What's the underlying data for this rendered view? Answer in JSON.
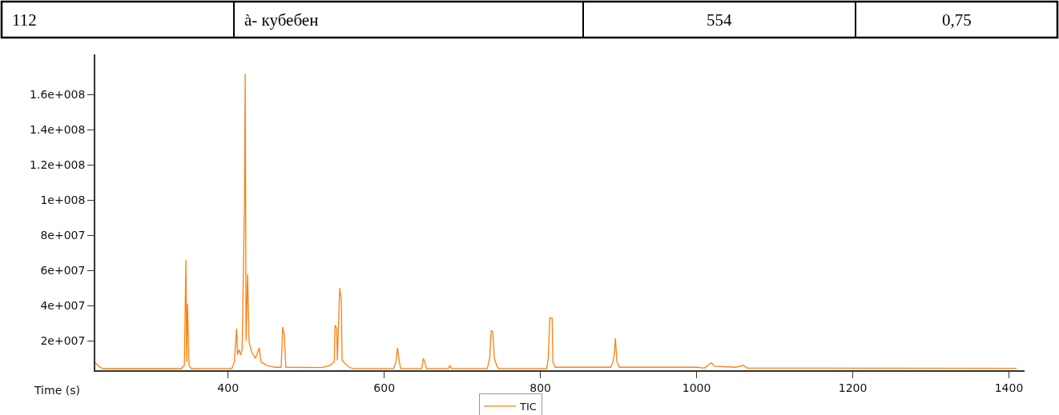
{
  "chart_data": {
    "type": "line",
    "xlabel": "Time (s)",
    "annotations": [
      "112",
      "à- кубебен",
      "554",
      "0,75"
    ],
    "x": [
      230,
      236,
      240,
      340,
      344,
      346,
      347,
      348,
      350,
      353,
      405,
      408,
      411,
      412,
      414,
      416,
      418,
      421,
      422,
      423,
      425,
      427,
      430,
      435,
      440,
      442,
      450,
      460,
      468,
      470,
      472,
      474,
      520,
      530,
      536,
      537,
      539,
      540,
      543,
      545,
      546,
      550,
      555,
      560,
      612,
      615,
      617,
      619,
      621,
      648,
      650,
      652,
      654,
      682,
      684,
      686,
      732,
      735,
      737,
      739,
      741,
      744,
      746,
      808,
      810,
      812,
      815,
      816,
      819,
      890,
      893,
      895,
      896,
      898,
      901,
      1000,
      1010,
      1019,
      1023,
      1050,
      1060,
      1065,
      1410
    ],
    "series": [
      {
        "name": "TIC",
        "color": "#ff7f0e",
        "values": [
          7500000.0,
          5000000.0,
          4200000.0,
          4200000.0,
          6000000.0,
          66000000.0,
          8000000.0,
          41000000.0,
          6000000.0,
          4200000.0,
          4300000.0,
          8000000.0,
          27000000.0,
          12000000.0,
          15000000.0,
          12000000.0,
          15000000.0,
          97000000.0,
          172000000.0,
          20000000.0,
          58000000.0,
          19000000.0,
          14000000.0,
          10000000.0,
          16000000.0,
          8000000.0,
          6000000.0,
          5000000.0,
          5000000.0,
          28000000.0,
          23000000.0,
          5000000.0,
          4800000.0,
          6000000.0,
          8000000.0,
          29000000.0,
          27000000.0,
          9000000.0,
          50000000.0,
          43000000.0,
          9000000.0,
          7000000.0,
          5000000.0,
          4300000.0,
          4300000.0,
          8000000.0,
          16000000.0,
          9000000.0,
          4300000.0,
          4300000.0,
          10000000.0,
          8000000.0,
          4300000.0,
          4300000.0,
          6000000.0,
          4300000.0,
          4300000.0,
          10000000.0,
          26000000.0,
          25000000.0,
          10000000.0,
          6000000.0,
          4300000.0,
          4300000.0,
          10000000.0,
          33000000.0,
          33000000.0,
          8000000.0,
          5000000.0,
          5000000.0,
          8000000.0,
          14000000.0,
          21500000.0,
          8000000.0,
          5000000.0,
          5000000.0,
          4500000.0,
          7600000.0,
          5500000.0,
          5000000.0,
          6000000.0,
          4500000.0,
          4400000.0
        ]
      }
    ],
    "xlim": [
      230,
      1420
    ],
    "xticks": [
      400,
      600,
      800,
      1000,
      1200,
      1400
    ],
    "ylim": [
      3300000.0,
      183000000.0
    ],
    "yticks": [
      {
        "value": 20000000.0,
        "label": "2e+007"
      },
      {
        "value": 40000000.0,
        "label": "4e+007"
      },
      {
        "value": 60000000.0,
        "label": "6e+007"
      },
      {
        "value": 80000000.0,
        "label": "8e+007"
      },
      {
        "value": 100000000.0,
        "label": "1e+008"
      },
      {
        "value": 120000000.0,
        "label": "1.2e+008"
      },
      {
        "value": 140000000.0,
        "label": "1.4e+008"
      },
      {
        "value": 160000000.0,
        "label": "1.6e+008"
      }
    ],
    "legend": "bottom",
    "marker": "none",
    "line_style": "solid"
  }
}
